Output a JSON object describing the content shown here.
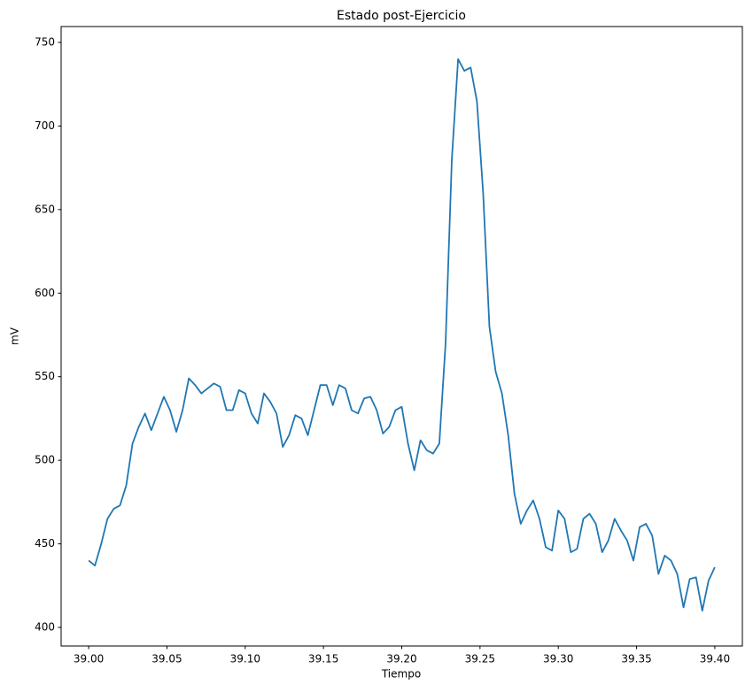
{
  "chart_data": {
    "type": "line",
    "title": "Estado post-Ejercicio",
    "x_label": "Tiempo",
    "y_label": "mV",
    "x": [
      39.0,
      39.004,
      39.008,
      39.012,
      39.016,
      39.02,
      39.024,
      39.028,
      39.032,
      39.036,
      39.04,
      39.044,
      39.048,
      39.052,
      39.056,
      39.06,
      39.064,
      39.068,
      39.072,
      39.076,
      39.08,
      39.084,
      39.088,
      39.092,
      39.096,
      39.1,
      39.104,
      39.108,
      39.112,
      39.116,
      39.12,
      39.124,
      39.128,
      39.132,
      39.136,
      39.14,
      39.144,
      39.148,
      39.152,
      39.156,
      39.16,
      39.164,
      39.168,
      39.172,
      39.176,
      39.18,
      39.184,
      39.188,
      39.192,
      39.196,
      39.2,
      39.204,
      39.208,
      39.212,
      39.216,
      39.22,
      39.224,
      39.228,
      39.232,
      39.236,
      39.24,
      39.244,
      39.248,
      39.252,
      39.256,
      39.26,
      39.264,
      39.268,
      39.272,
      39.276,
      39.28,
      39.284,
      39.288,
      39.292,
      39.296,
      39.3,
      39.304,
      39.308,
      39.312,
      39.316,
      39.32,
      39.324,
      39.328,
      39.332,
      39.336,
      39.34,
      39.344,
      39.348,
      39.352,
      39.356,
      39.36,
      39.364,
      39.368,
      39.372,
      39.376,
      39.38,
      39.384,
      39.388,
      39.392,
      39.396,
      39.4
    ],
    "series": [
      {
        "name": "mV",
        "color": "#1f77b4",
        "values": [
          440,
          437,
          450,
          465,
          471,
          473,
          485,
          510,
          520,
          528,
          518,
          528,
          538,
          530,
          517,
          530,
          549,
          545,
          540,
          543,
          546,
          544,
          530,
          530,
          542,
          540,
          528,
          522,
          540,
          535,
          528,
          508,
          515,
          527,
          525,
          515,
          530,
          545,
          545,
          533,
          545,
          543,
          530,
          528,
          537,
          538,
          530,
          516,
          520,
          530,
          532,
          510,
          494,
          512,
          506,
          504,
          510,
          570,
          680,
          740,
          733,
          735,
          715,
          660,
          580,
          553,
          540,
          515,
          480,
          462,
          470,
          476,
          465,
          448,
          446,
          470,
          465,
          445,
          447,
          465,
          468,
          462,
          445,
          452,
          465,
          458,
          452,
          440,
          460,
          462,
          455,
          432,
          443,
          440,
          432,
          412,
          429,
          430,
          410,
          428,
          436
        ]
      }
    ],
    "xlim": [
      38.9824,
      39.4176
    ],
    "ylim": [
      388.9,
      759.5
    ],
    "xticks": [
      {
        "value": 39,
        "label": "39.00"
      },
      39.05,
      {
        "value": 39.1,
        "label": "39.10"
      },
      39.15,
      {
        "value": 39.2,
        "label": "39.20"
      },
      39.25,
      {
        "value": 39.3,
        "label": "39.30"
      },
      39.35,
      {
        "value": 39.4,
        "label": "39.40"
      }
    ],
    "yticks": [
      400,
      450,
      500,
      550,
      600,
      650,
      700,
      750
    ],
    "grid": false
  }
}
